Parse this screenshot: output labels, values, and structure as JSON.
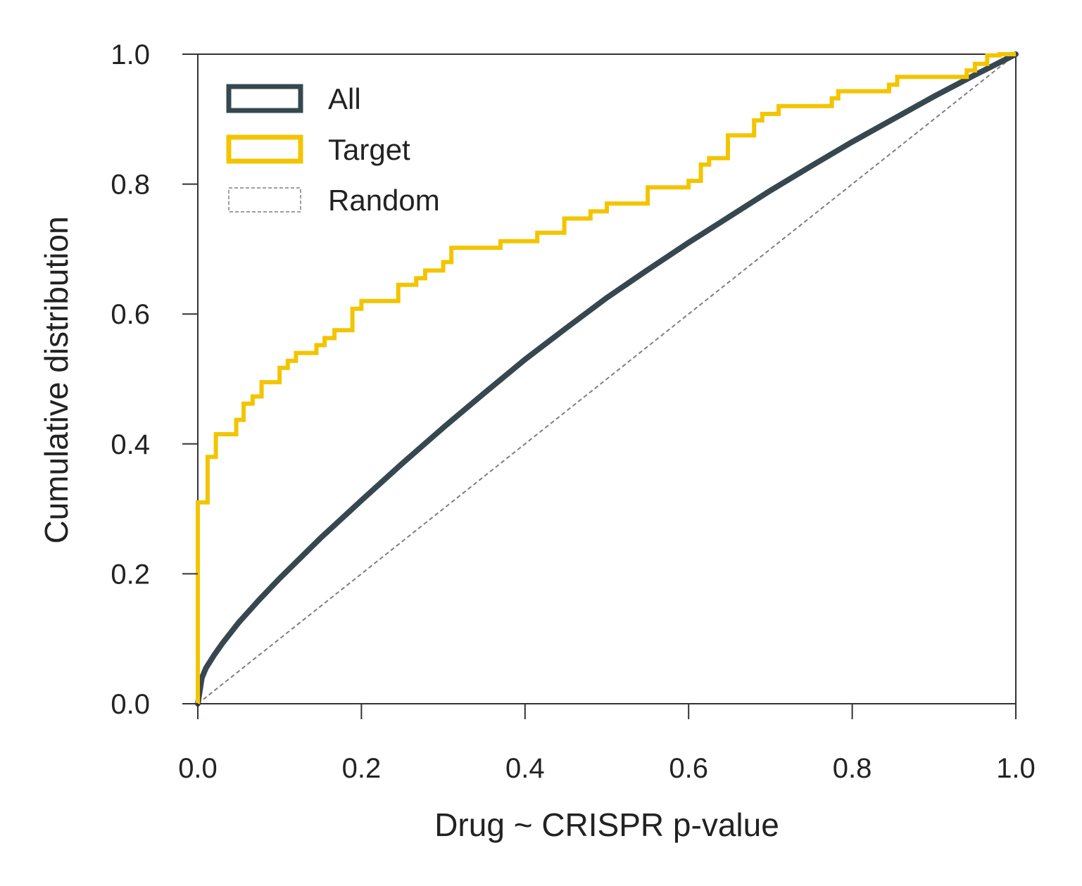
{
  "chart_data": {
    "type": "line",
    "xlabel": "Drug ~ CRISPR p-value",
    "ylabel": "Cumulative distribution",
    "xlim": [
      0,
      1
    ],
    "ylim": [
      0,
      1
    ],
    "xticks": [
      "0.0",
      "0.2",
      "0.4",
      "0.6",
      "0.8",
      "1.0"
    ],
    "yticks": [
      "0.0",
      "0.2",
      "0.4",
      "0.6",
      "0.8",
      "1.0"
    ],
    "grid": false,
    "legend_position": "top-left",
    "series": [
      {
        "name": "All",
        "color": "#37474F",
        "style": "solid",
        "points": [
          [
            0,
            0
          ],
          [
            0.005,
            0.04
          ],
          [
            0.01,
            0.055
          ],
          [
            0.02,
            0.075
          ],
          [
            0.03,
            0.093
          ],
          [
            0.05,
            0.125
          ],
          [
            0.075,
            0.16
          ],
          [
            0.1,
            0.193
          ],
          [
            0.15,
            0.255
          ],
          [
            0.2,
            0.313
          ],
          [
            0.25,
            0.37
          ],
          [
            0.3,
            0.425
          ],
          [
            0.35,
            0.478
          ],
          [
            0.4,
            0.53
          ],
          [
            0.45,
            0.578
          ],
          [
            0.5,
            0.625
          ],
          [
            0.55,
            0.668
          ],
          [
            0.6,
            0.71
          ],
          [
            0.65,
            0.75
          ],
          [
            0.7,
            0.79
          ],
          [
            0.75,
            0.828
          ],
          [
            0.8,
            0.865
          ],
          [
            0.85,
            0.9
          ],
          [
            0.9,
            0.935
          ],
          [
            0.95,
            0.968
          ],
          [
            1.0,
            1.0
          ]
        ]
      },
      {
        "name": "Target",
        "color": "#F2C500",
        "style": "step",
        "points": [
          [
            0,
            0
          ],
          [
            0,
            0.31
          ],
          [
            0.012,
            0.31
          ],
          [
            0.012,
            0.38
          ],
          [
            0.022,
            0.38
          ],
          [
            0.022,
            0.415
          ],
          [
            0.047,
            0.415
          ],
          [
            0.047,
            0.437
          ],
          [
            0.056,
            0.437
          ],
          [
            0.056,
            0.462
          ],
          [
            0.067,
            0.462
          ],
          [
            0.067,
            0.473
          ],
          [
            0.078,
            0.473
          ],
          [
            0.078,
            0.495
          ],
          [
            0.1,
            0.495
          ],
          [
            0.1,
            0.517
          ],
          [
            0.11,
            0.517
          ],
          [
            0.11,
            0.528
          ],
          [
            0.12,
            0.528
          ],
          [
            0.12,
            0.54
          ],
          [
            0.145,
            0.54
          ],
          [
            0.145,
            0.552
          ],
          [
            0.155,
            0.552
          ],
          [
            0.155,
            0.563
          ],
          [
            0.167,
            0.563
          ],
          [
            0.167,
            0.575
          ],
          [
            0.189,
            0.575
          ],
          [
            0.189,
            0.608
          ],
          [
            0.2,
            0.608
          ],
          [
            0.2,
            0.62
          ],
          [
            0.245,
            0.62
          ],
          [
            0.245,
            0.645
          ],
          [
            0.267,
            0.645
          ],
          [
            0.267,
            0.655
          ],
          [
            0.278,
            0.655
          ],
          [
            0.278,
            0.667
          ],
          [
            0.3,
            0.667
          ],
          [
            0.3,
            0.68
          ],
          [
            0.31,
            0.68
          ],
          [
            0.31,
            0.702
          ],
          [
            0.37,
            0.702
          ],
          [
            0.37,
            0.712
          ],
          [
            0.415,
            0.712
          ],
          [
            0.415,
            0.725
          ],
          [
            0.448,
            0.725
          ],
          [
            0.448,
            0.747
          ],
          [
            0.48,
            0.747
          ],
          [
            0.48,
            0.758
          ],
          [
            0.5,
            0.758
          ],
          [
            0.5,
            0.77
          ],
          [
            0.55,
            0.77
          ],
          [
            0.55,
            0.795
          ],
          [
            0.6,
            0.795
          ],
          [
            0.6,
            0.805
          ],
          [
            0.615,
            0.805
          ],
          [
            0.615,
            0.83
          ],
          [
            0.625,
            0.83
          ],
          [
            0.625,
            0.84
          ],
          [
            0.648,
            0.84
          ],
          [
            0.648,
            0.875
          ],
          [
            0.68,
            0.875
          ],
          [
            0.68,
            0.898
          ],
          [
            0.69,
            0.898
          ],
          [
            0.69,
            0.908
          ],
          [
            0.71,
            0.908
          ],
          [
            0.71,
            0.92
          ],
          [
            0.775,
            0.92
          ],
          [
            0.775,
            0.932
          ],
          [
            0.783,
            0.932
          ],
          [
            0.783,
            0.943
          ],
          [
            0.845,
            0.943
          ],
          [
            0.845,
            0.953
          ],
          [
            0.855,
            0.953
          ],
          [
            0.855,
            0.965
          ],
          [
            0.94,
            0.965
          ],
          [
            0.94,
            0.975
          ],
          [
            0.95,
            0.975
          ],
          [
            0.95,
            0.985
          ],
          [
            0.965,
            0.985
          ],
          [
            0.965,
            0.998
          ],
          [
            0.98,
            0.998
          ],
          [
            0.98,
            1.0
          ],
          [
            1.0,
            1.0
          ]
        ]
      },
      {
        "name": "Random",
        "color": "#7F7F7F",
        "style": "dashed",
        "points": [
          [
            0,
            0
          ],
          [
            1,
            1
          ]
        ]
      }
    ]
  },
  "legend": {
    "items": [
      {
        "label": "All",
        "color": "#37474F",
        "style": "solid-box"
      },
      {
        "label": "Target",
        "color": "#F2C500",
        "style": "solid-box"
      },
      {
        "label": "Random",
        "color": "#7F7F7F",
        "style": "dashed-box"
      }
    ]
  }
}
